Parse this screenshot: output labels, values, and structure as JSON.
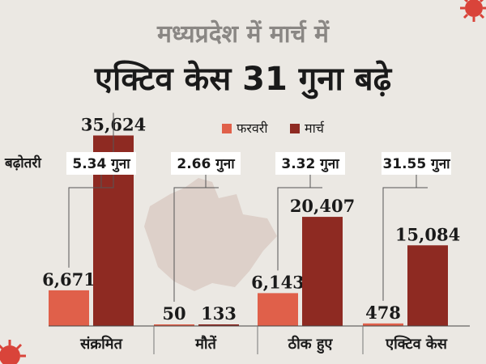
{
  "title_line1": "मध्यप्रदेश में मार्च में",
  "title_line2": "एक्टिव केस 31 गुना बढ़े",
  "growth_label": "बढ़ोतरी",
  "colors": {
    "feb": "#e0604a",
    "mar": "#8e2a22",
    "background": "#ebe8e3"
  },
  "chart_data": {
    "type": "bar",
    "categories": [
      "संक्रमित",
      "मौतें",
      "ठीक हुए",
      "एक्टिव केस"
    ],
    "series": [
      {
        "name": "फरवरी",
        "values": [
          6671,
          50,
          6143,
          478
        ],
        "labels": [
          "6,671",
          "50",
          "6,143",
          "478"
        ]
      },
      {
        "name": "मार्च",
        "values": [
          35624,
          133,
          20407,
          15084
        ],
        "labels": [
          "35,624",
          "133",
          "20,407",
          "15,084"
        ]
      }
    ],
    "growth": [
      "5.34 गुना",
      "2.66 गुना",
      "3.32 गुना",
      "31.55 गुना"
    ],
    "ylim": [
      0,
      36000
    ],
    "grid": false,
    "legend_position": "top-center"
  }
}
